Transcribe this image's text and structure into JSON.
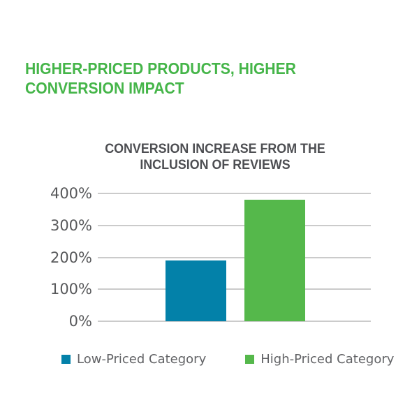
{
  "title": {
    "line1": "HIGHER-PRICED PRODUCTS, HIGHER",
    "line2": "CONVERSION IMPACT"
  },
  "subtitle": {
    "line1": "CONVERSION INCREASE FROM THE",
    "line2": "INCLUSION OF REVIEWS"
  },
  "colors": {
    "title_green": "#45b549",
    "subtitle_text": "#4d4e52",
    "axis_text": "#58595b",
    "legend_text": "#626366",
    "gridline": "#cbcbcb",
    "bar_blue": "#0381a9",
    "bar_green": "#55b84b",
    "background": "#ffffff"
  },
  "chart_data": {
    "type": "bar",
    "title": "CONVERSION INCREASE FROM THE INCLUSION OF REVIEWS",
    "categories": [
      "Low-Priced Category",
      "High-Priced Category"
    ],
    "values": [
      190,
      380
    ],
    "unit": "%",
    "xlabel": "",
    "ylabel": "",
    "ylim": [
      0,
      400
    ],
    "ytick_values": [
      0,
      100,
      200,
      300,
      400
    ],
    "yticks": [
      "0%",
      "100%",
      "200%",
      "300%",
      "400%"
    ],
    "grid": true,
    "legend_position": "bottom",
    "series_colors": [
      "#0381a9",
      "#55b84b"
    ]
  },
  "legend": {
    "items": [
      {
        "label": "Low-Priced Category",
        "color": "#0381a9"
      },
      {
        "label": "High-Priced Category",
        "color": "#55b84b"
      }
    ]
  }
}
